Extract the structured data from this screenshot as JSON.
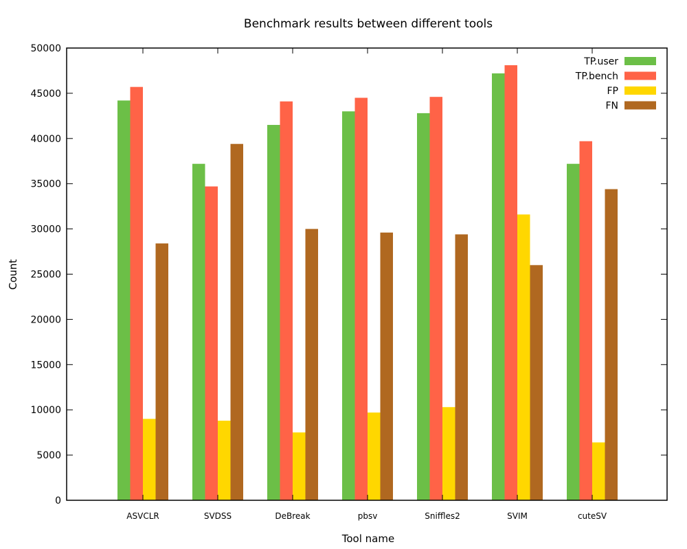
{
  "chart_data": {
    "type": "bar",
    "title": "Benchmark results between different tools",
    "xlabel": "Tool name",
    "ylabel": "Count",
    "ylim": [
      0,
      50000
    ],
    "yticks": [
      0,
      5000,
      10000,
      15000,
      20000,
      25000,
      30000,
      35000,
      40000,
      45000,
      50000
    ],
    "categories": [
      "ASVCLR",
      "SVDSS",
      "DeBreak",
      "pbsv",
      "Sniffles2",
      "SVIM",
      "cuteSV"
    ],
    "series": [
      {
        "name": "TP.user",
        "color": "#6cbf47",
        "values": [
          44200,
          37200,
          41500,
          43000,
          42800,
          47200,
          37200
        ]
      },
      {
        "name": "TP.bench",
        "color": "#ff6347",
        "values": [
          45700,
          34700,
          44100,
          44500,
          44600,
          48100,
          39700
        ]
      },
      {
        "name": "FP",
        "color": "#ffd700",
        "values": [
          9000,
          8800,
          7500,
          9700,
          10300,
          31600,
          6400
        ]
      },
      {
        "name": "FN",
        "color": "#b06820",
        "values": [
          28400,
          39400,
          30000,
          29600,
          29400,
          26000,
          34400
        ]
      }
    ],
    "grid": false,
    "legend": "top-right"
  }
}
